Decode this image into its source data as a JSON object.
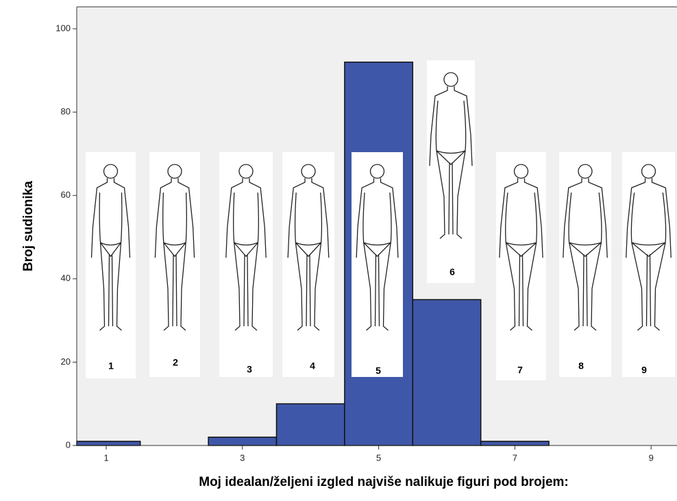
{
  "chart_data": {
    "type": "histogram",
    "x_label": "Moj idealan/željeni izgled najviše nalikuje figuri pod brojem:",
    "y_label": "Broj sudionika",
    "bins": [
      0.5,
      1.5,
      2.5,
      3.5,
      4.5,
      5.5,
      6.5,
      7.5,
      8.5,
      9.5
    ],
    "values": [
      1,
      0,
      2,
      10,
      92,
      35,
      1,
      0,
      0
    ],
    "color": "#3f57a8",
    "xlim": [
      0.57,
      9.38
    ],
    "xticks": [
      1,
      3,
      5,
      7,
      9
    ],
    "ylim": [
      0,
      100
    ],
    "yticks": [
      0,
      20,
      40,
      60,
      80,
      100
    ],
    "figure_labels": [
      "1",
      "2",
      "3",
      "4",
      "5",
      "6",
      "7",
      "8",
      "9"
    ]
  }
}
